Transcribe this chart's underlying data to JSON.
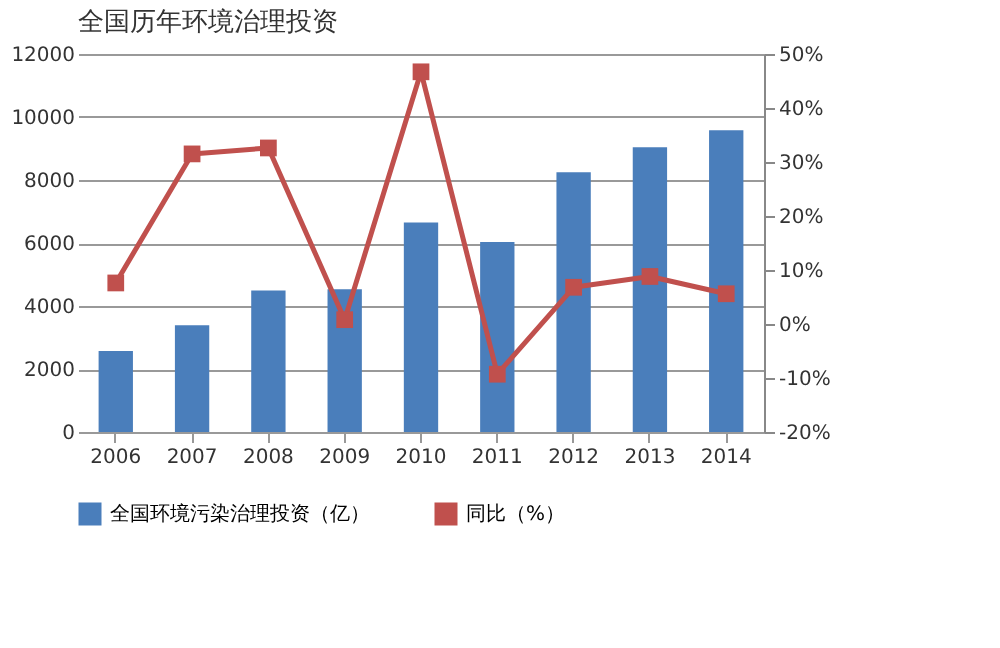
{
  "chart_data": {
    "type": "bar",
    "title": "全国历年环境治理投资",
    "categories": [
      "2006",
      "2007",
      "2008",
      "2009",
      "2010",
      "2011",
      "2012",
      "2013",
      "2014"
    ],
    "series": [
      {
        "name": "全国环境污染治理投资（亿）",
        "color": "#4a7ebb",
        "values": [
          2570,
          3390,
          4490,
          4530,
          6650,
          6030,
          8250,
          9040,
          9580
        ]
      },
      {
        "name": "同比（%）",
        "type": "line",
        "axis": "y2",
        "color": "#c0504d",
        "marker": "square",
        "values": [
          7.6,
          31.5,
          32.6,
          0.8,
          46.7,
          -9.3,
          6.8,
          8.8,
          5.6
        ]
      }
    ],
    "ylim": [
      0,
      12000
    ],
    "yticks": [
      0,
      2000,
      4000,
      6000,
      8000,
      10000,
      12000
    ],
    "y2lim": [
      -20,
      50
    ],
    "y2ticks": [
      {
        "value": -20,
        "label": "-20%"
      },
      {
        "value": -10,
        "label": "-10%"
      },
      {
        "value": 0,
        "label": "0%"
      },
      {
        "value": 10,
        "label": "10%"
      },
      {
        "value": 20,
        "label": "20%"
      },
      {
        "value": 30,
        "label": "30%"
      },
      {
        "value": 40,
        "label": "40%"
      },
      {
        "value": 50,
        "label": "50%"
      }
    ],
    "grid": "y",
    "legend": "bottom"
  }
}
